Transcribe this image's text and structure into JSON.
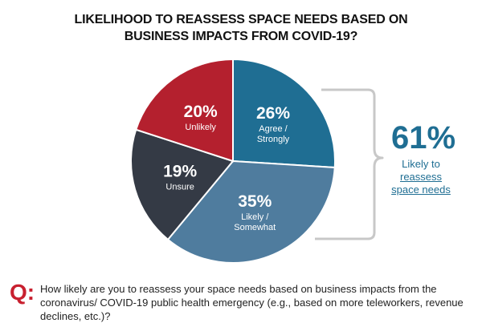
{
  "chart_data": {
    "type": "pie",
    "title_line1": "LIKELIHOOD TO REASSESS SPACE NEEDS BASED ON",
    "title_line2": "BUSINESS IMPACTS FROM COVID-19?",
    "slices": [
      {
        "pct_label": "26%",
        "label_lines": [
          "Agree /",
          "Strongly"
        ],
        "value": 26,
        "color": "#1f6e93"
      },
      {
        "pct_label": "35%",
        "label_lines": [
          "Likely /",
          "Somewhat"
        ],
        "value": 35,
        "color": "#4f7c9e"
      },
      {
        "pct_label": "19%",
        "label_lines": [
          "Unsure"
        ],
        "value": 19,
        "color": "#343a45"
      },
      {
        "pct_label": "20%",
        "label_lines": [
          "Unlikely"
        ],
        "value": 20,
        "color": "#b4202e"
      }
    ],
    "annotation": {
      "value": "61%",
      "line1": "Likely to",
      "line2": "reassess",
      "line3": "space needs"
    },
    "question": {
      "mark": "Q:",
      "text": "How likely are you to reassess your space needs based on business impacts from the coronavirus/ COVID-19 public health emergency (e.g., based on more teleworkers, revenue declines, etc.)?"
    }
  }
}
